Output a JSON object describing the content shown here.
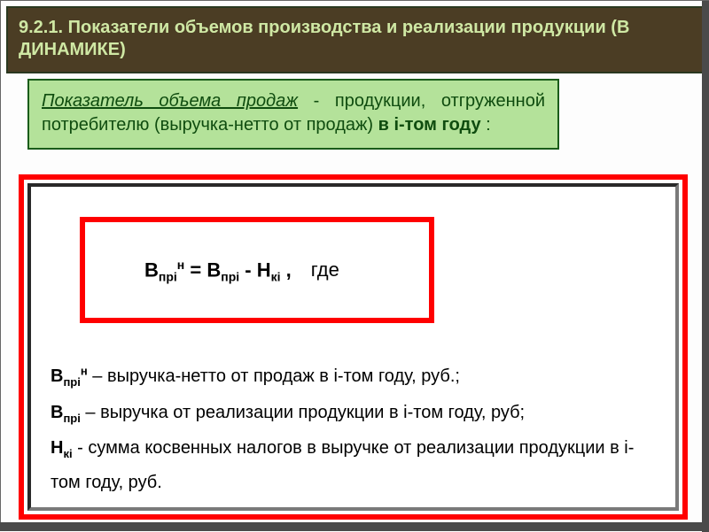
{
  "colors": {
    "title_bg": "#4b3d24",
    "title_text": "#cfe8a4",
    "green_bg": "#b4e29a",
    "green_text": "#0f4c0f",
    "red_border": "#ff0000",
    "panel_bg": "#ffffff",
    "body_text": "#111111",
    "slide_border": "#4a4a4a"
  },
  "title": {
    "line": "9.2.1. Показатели объемов производства и реализации продукции   (В ДИНАМИКЕ)",
    "fontsize": 20
  },
  "definition_box": {
    "underline_italic": "Показатель объема продаж",
    "rest1": " - продукции, отгруженной потребителю (выручка-нетто от продаж) ",
    "bold_tail": "в i-том году",
    "colon": " :",
    "fontsize": 20
  },
  "formula": {
    "lhs_base": "В",
    "lhs_sub": "прi",
    "lhs_sup": "н",
    "eq": " = ",
    "r1_base": "В",
    "r1_sub": "прi",
    "minus": " - ",
    "r2_base": "Н",
    "r2_sub": "кi",
    "comma": " ,",
    "where": "где",
    "fontsize": 22
  },
  "legend": {
    "fontsize": 20,
    "items": [
      {
        "base": "В",
        "sub": "прi",
        "sup": "н",
        "dash": " –   ",
        "desc": "выручка-нетто от продаж в i-том году, руб.;"
      },
      {
        "base": "В",
        "sub": "прi",
        "sup": "",
        "dash": " – ",
        "desc": "выручка от реализации продукции в i-том году, руб;"
      },
      {
        "base": "Н",
        "sub": "кi",
        "sup": "",
        "dash": " - ",
        "desc": "сумма косвенных налогов в выручке от реализации продукции в i-том году, руб."
      }
    ]
  }
}
